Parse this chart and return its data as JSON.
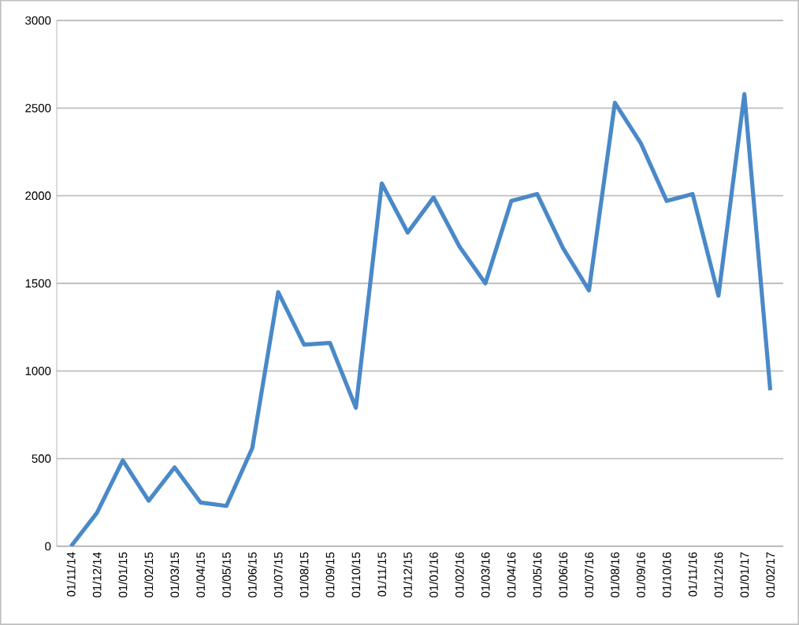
{
  "chart_data": {
    "type": "line",
    "categories": [
      "01/11/14",
      "01/12/14",
      "01/01/15",
      "01/02/15",
      "01/03/15",
      "01/04/15",
      "01/05/15",
      "01/06/15",
      "01/07/15",
      "01/08/15",
      "01/09/15",
      "01/10/15",
      "01/11/15",
      "01/12/15",
      "01/01/16",
      "01/02/16",
      "01/03/16",
      "01/04/16",
      "01/05/16",
      "01/06/16",
      "01/07/16",
      "01/08/16",
      "01/09/16",
      "01/10/16",
      "01/11/16",
      "01/12/16",
      "01/01/17",
      "01/02/17"
    ],
    "series": [
      {
        "color": "#4a89c8",
        "values": [
          0,
          190,
          490,
          260,
          450,
          250,
          230,
          560,
          1450,
          1150,
          1160,
          790,
          2070,
          1790,
          1990,
          1710,
          1500,
          1970,
          2010,
          1700,
          1460,
          2530,
          2300,
          1970,
          2010,
          1430,
          2580,
          890
        ]
      }
    ],
    "ylim": [
      0,
      3000
    ],
    "yticks": [
      0,
      500,
      1000,
      1500,
      2000,
      2500,
      3000
    ],
    "grid": "y",
    "marker": "none",
    "line_style": "solid"
  }
}
